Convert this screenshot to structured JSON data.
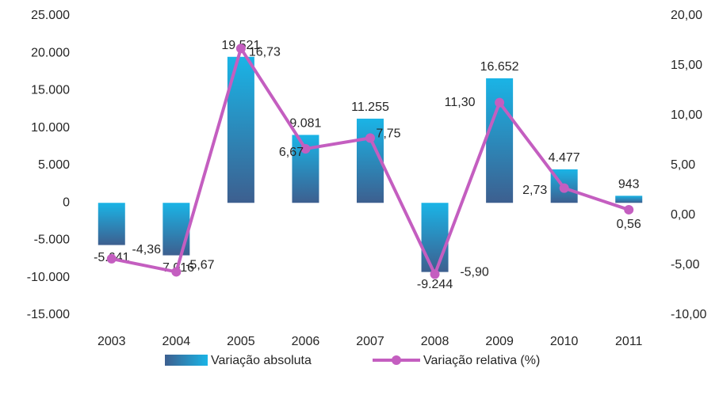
{
  "chart_data": {
    "type": "bar_line",
    "categories": [
      "2003",
      "2004",
      "2005",
      "2006",
      "2007",
      "2008",
      "2009",
      "2010",
      "2011"
    ],
    "series": [
      {
        "name": "Variação absoluta",
        "type": "bar",
        "color": "#1aa6d8",
        "values": [
          -5641,
          -7016,
          19521,
          9081,
          11255,
          -9244,
          16652,
          4477,
          943
        ],
        "value_labels": [
          "-5.641",
          "-7.016",
          "19.521",
          "9.081",
          "11.255",
          "-9.244",
          "16.652",
          "4.477",
          "943"
        ]
      },
      {
        "name": "Variação relativa (%)",
        "type": "line",
        "axis": "y2",
        "color": "#c45ec0",
        "values": [
          -4.36,
          -5.67,
          16.73,
          6.67,
          7.75,
          -5.9,
          11.3,
          2.73,
          0.56
        ],
        "value_labels": [
          "-4,36",
          "-5,67",
          "16,73",
          "6,67",
          "7,75",
          "-5,90",
          "11,30",
          "2,73",
          "0,56"
        ]
      }
    ],
    "ylim": [
      -15000,
      25000
    ],
    "yticks": [
      {
        "value": -15000,
        "label": "-15.000"
      },
      {
        "value": -10000,
        "label": "-10.000"
      },
      {
        "value": -5000,
        "label": "-5.000"
      },
      0,
      {
        "value": 5000,
        "label": "5.000"
      },
      {
        "value": 10000,
        "label": "10.000"
      },
      {
        "value": 15000,
        "label": "15.000"
      },
      {
        "value": 20000,
        "label": "20.000"
      },
      {
        "value": 25000,
        "label": "25.000"
      }
    ],
    "y2lim": [
      -10,
      20
    ],
    "y2ticks": [
      {
        "value": -10,
        "label": "-10,00"
      },
      {
        "value": -5,
        "label": "-5,00"
      },
      {
        "value": 0,
        "label": "0,00"
      },
      {
        "value": 5,
        "label": "5,00"
      },
      {
        "value": 10,
        "label": "10,00"
      },
      {
        "value": 15,
        "label": "15,00"
      },
      {
        "value": 20,
        "label": "20,00"
      }
    ],
    "grid": false,
    "legend": "bottom"
  }
}
